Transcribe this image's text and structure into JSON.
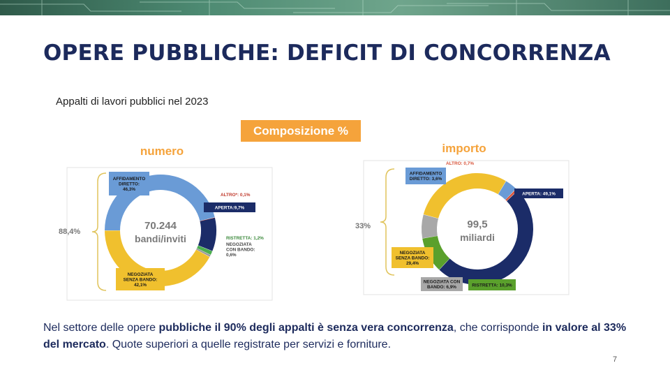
{
  "slide": {
    "title": "OPERE PUBBLICHE: DEFICIT DI CONCORRENZA",
    "subtitle": "Appalti di lavori pubblici nel 2023",
    "composition_label": "Composizione %",
    "page_number": "7",
    "bottom_text": [
      {
        "text": "Nel settore delle opere ",
        "bold": false
      },
      {
        "text": "pubbliche il 90% degli appalti è senza vera concorrenza",
        "bold": true
      },
      {
        "text": ", che corrisponde ",
        "bold": false
      },
      {
        "text": "in valore al 33% del mercato",
        "bold": true
      },
      {
        "text": ". Quote superiori a quelle registrate per servizi e forniture.",
        "bold": false
      }
    ]
  },
  "chart_data": [
    {
      "type": "pie",
      "variant": "donut",
      "title": "numero",
      "center_value": "70.244",
      "center_label": "bandi/inviti",
      "bracket_label": "88,4%",
      "slices": [
        {
          "lines": [
            "AFFIDAMENTO",
            "DIRETTO:",
            "46,3%"
          ],
          "value": 46.3,
          "color": "#6a9bd6"
        },
        {
          "lines": [
            "ALTRO*: 0,1%"
          ],
          "value": 0.1,
          "color": "#c0392b"
        },
        {
          "lines": [
            "APERTA:9,7%"
          ],
          "value": 9.7,
          "color": "#1b2c68"
        },
        {
          "lines": [
            "RISTRETTA: 1,2%"
          ],
          "value": 1.2,
          "color": "#4caf50"
        },
        {
          "lines": [
            "NEGOZIATA",
            "CON BANDO:",
            "0,6%"
          ],
          "value": 0.6,
          "color": "#9a9a9a"
        },
        {
          "lines": [
            "NEGOZIATA",
            "SENZA BANDO:",
            "42,1%"
          ],
          "value": 42.1,
          "color": "#f0c02e"
        }
      ]
    },
    {
      "type": "pie",
      "variant": "donut",
      "title": "importo",
      "center_value": "99,5",
      "center_label": "miliardi",
      "bracket_label": "33%",
      "slices": [
        {
          "lines": [
            "ALTRO: 0,7%"
          ],
          "value": 0.7,
          "color": "#d9553b"
        },
        {
          "lines": [
            "APERTA: 49,1%"
          ],
          "value": 49.1,
          "color": "#1b2c68"
        },
        {
          "lines": [
            "RISTRETTA: 10,3%"
          ],
          "value": 10.3,
          "color": "#5aa02c"
        },
        {
          "lines": [
            "NEGOZIATA CON",
            "BANDO: 6,9%"
          ],
          "value": 6.9,
          "color": "#a8a8a8"
        },
        {
          "lines": [
            "NEGOZIATA",
            "SENZA BANDO:",
            "29,4%"
          ],
          "value": 29.4,
          "color": "#f0c02e"
        },
        {
          "lines": [
            "AFFIDAMENTO",
            "DIRETTO: 3,6%"
          ],
          "value": 3.6,
          "color": "#6a9bd6"
        }
      ]
    }
  ]
}
